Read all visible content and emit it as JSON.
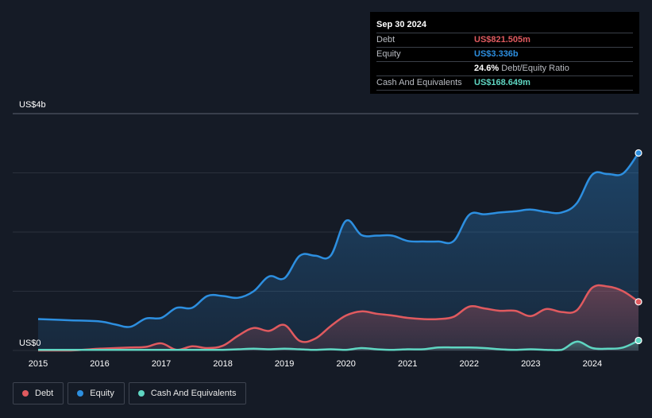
{
  "tooltip": {
    "date": "Sep 30 2024",
    "debt_label": "Debt",
    "debt_value": "US$821.505m",
    "equity_label": "Equity",
    "equity_value": "US$3.336b",
    "ratio_value": "24.6%",
    "ratio_label": "Debt/Equity Ratio",
    "cash_label": "Cash And Equivalents",
    "cash_value": "US$168.649m"
  },
  "legend": [
    {
      "label": "Debt",
      "color": "#e05a5f"
    },
    {
      "label": "Equity",
      "color": "#2d8fe0"
    },
    {
      "label": "Cash And Equivalents",
      "color": "#5fd6c2"
    }
  ],
  "colors": {
    "debt": "#e05a5f",
    "equity": "#2d8fe0",
    "cash": "#5fd6c2",
    "background": "#151b26"
  },
  "chart_data": {
    "type": "area",
    "y_labels": [
      "US$4b",
      "US$0"
    ],
    "ylim": [
      0,
      4.0
    ],
    "xlim": [
      2015.0,
      2024.75
    ],
    "x_ticks": [
      "2015",
      "2016",
      "2017",
      "2018",
      "2019",
      "2020",
      "2021",
      "2022",
      "2023",
      "2024"
    ],
    "grid": true,
    "legend_position": "bottom-left",
    "series": [
      {
        "name": "Equity",
        "unit": "US$b",
        "points": [
          [
            2015.0,
            0.53
          ],
          [
            2015.5,
            0.51
          ],
          [
            2016.0,
            0.49
          ],
          [
            2016.25,
            0.44
          ],
          [
            2016.5,
            0.4
          ],
          [
            2016.75,
            0.54
          ],
          [
            2017.0,
            0.55
          ],
          [
            2017.25,
            0.72
          ],
          [
            2017.5,
            0.72
          ],
          [
            2017.75,
            0.92
          ],
          [
            2018.0,
            0.92
          ],
          [
            2018.25,
            0.89
          ],
          [
            2018.5,
            1.0
          ],
          [
            2018.75,
            1.25
          ],
          [
            2019.0,
            1.22
          ],
          [
            2019.25,
            1.6
          ],
          [
            2019.5,
            1.6
          ],
          [
            2019.75,
            1.6
          ],
          [
            2020.0,
            2.19
          ],
          [
            2020.25,
            1.95
          ],
          [
            2020.5,
            1.94
          ],
          [
            2020.75,
            1.94
          ],
          [
            2021.0,
            1.85
          ],
          [
            2021.25,
            1.84
          ],
          [
            2021.5,
            1.84
          ],
          [
            2021.75,
            1.85
          ],
          [
            2022.0,
            2.29
          ],
          [
            2022.25,
            2.3
          ],
          [
            2022.5,
            2.33
          ],
          [
            2022.75,
            2.35
          ],
          [
            2023.0,
            2.38
          ],
          [
            2023.25,
            2.34
          ],
          [
            2023.5,
            2.33
          ],
          [
            2023.75,
            2.49
          ],
          [
            2024.0,
            2.97
          ],
          [
            2024.25,
            2.98
          ],
          [
            2024.5,
            2.99
          ],
          [
            2024.75,
            3.336
          ]
        ]
      },
      {
        "name": "Debt",
        "unit": "US$b",
        "points": [
          [
            2015.0,
            0.0
          ],
          [
            2015.5,
            0.0
          ],
          [
            2016.0,
            0.03
          ],
          [
            2016.25,
            0.04
          ],
          [
            2016.5,
            0.05
          ],
          [
            2016.75,
            0.06
          ],
          [
            2017.0,
            0.12
          ],
          [
            2017.25,
            0.01
          ],
          [
            2017.5,
            0.07
          ],
          [
            2017.75,
            0.04
          ],
          [
            2018.0,
            0.08
          ],
          [
            2018.25,
            0.25
          ],
          [
            2018.5,
            0.38
          ],
          [
            2018.75,
            0.33
          ],
          [
            2019.0,
            0.43
          ],
          [
            2019.25,
            0.16
          ],
          [
            2019.5,
            0.2
          ],
          [
            2019.75,
            0.41
          ],
          [
            2020.0,
            0.59
          ],
          [
            2020.25,
            0.66
          ],
          [
            2020.5,
            0.62
          ],
          [
            2020.75,
            0.59
          ],
          [
            2021.0,
            0.55
          ],
          [
            2021.25,
            0.53
          ],
          [
            2021.5,
            0.53
          ],
          [
            2021.75,
            0.57
          ],
          [
            2022.0,
            0.74
          ],
          [
            2022.25,
            0.71
          ],
          [
            2022.5,
            0.67
          ],
          [
            2022.75,
            0.67
          ],
          [
            2023.0,
            0.58
          ],
          [
            2023.25,
            0.7
          ],
          [
            2023.5,
            0.65
          ],
          [
            2023.75,
            0.68
          ],
          [
            2024.0,
            1.06
          ],
          [
            2024.25,
            1.08
          ],
          [
            2024.5,
            1.0
          ],
          [
            2024.75,
            0.8215
          ]
        ]
      },
      {
        "name": "Cash And Equivalents",
        "unit": "US$b",
        "points": [
          [
            2015.0,
            0.01
          ],
          [
            2015.5,
            0.01
          ],
          [
            2016.0,
            0.01
          ],
          [
            2016.5,
            0.01
          ],
          [
            2017.0,
            0.01
          ],
          [
            2017.5,
            0.01
          ],
          [
            2018.0,
            0.01
          ],
          [
            2018.25,
            0.02
          ],
          [
            2018.5,
            0.03
          ],
          [
            2018.75,
            0.02
          ],
          [
            2019.0,
            0.03
          ],
          [
            2019.25,
            0.02
          ],
          [
            2019.5,
            0.01
          ],
          [
            2019.75,
            0.02
          ],
          [
            2020.0,
            0.01
          ],
          [
            2020.25,
            0.04
          ],
          [
            2020.5,
            0.02
          ],
          [
            2020.75,
            0.01
          ],
          [
            2021.0,
            0.02
          ],
          [
            2021.25,
            0.02
          ],
          [
            2021.5,
            0.05
          ],
          [
            2021.75,
            0.05
          ],
          [
            2022.0,
            0.05
          ],
          [
            2022.25,
            0.04
          ],
          [
            2022.5,
            0.02
          ],
          [
            2022.75,
            0.01
          ],
          [
            2023.0,
            0.02
          ],
          [
            2023.25,
            0.01
          ],
          [
            2023.5,
            0.01
          ],
          [
            2023.75,
            0.15
          ],
          [
            2024.0,
            0.04
          ],
          [
            2024.25,
            0.03
          ],
          [
            2024.5,
            0.05
          ],
          [
            2024.75,
            0.1686
          ]
        ]
      }
    ]
  }
}
